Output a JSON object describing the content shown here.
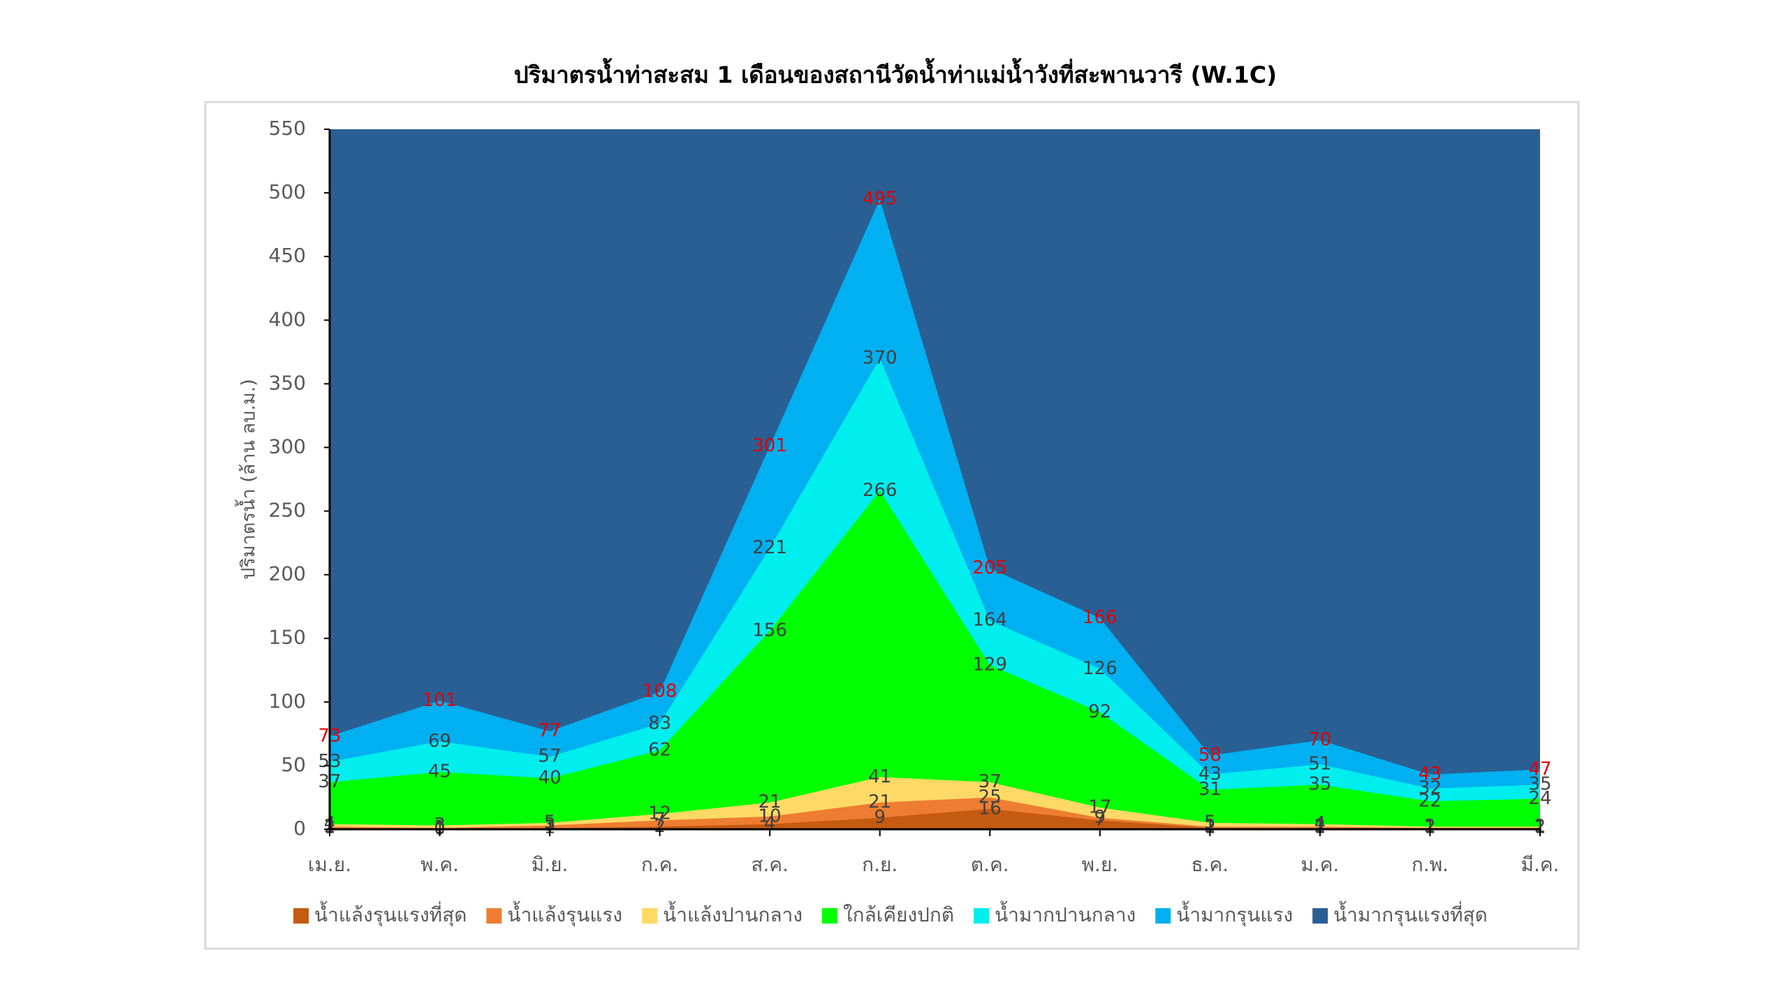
{
  "chart_data": {
    "type": "area",
    "title": "ปริมาตรน้ำท่าสะสม 1 เดือนของสถานีวัดน้ำท่าแม่น้ำวังที่สะพานวารี (W.1C)",
    "y_label": "ปริมาตรน้ำ (ล้าน ลบ.ม.)",
    "categories": [
      "เม.ย.",
      "พ.ค.",
      "มิ.ย.",
      "ก.ค.",
      "ส.ค.",
      "ก.ย.",
      "ต.ค.",
      "พ.ย.",
      "ธ.ค.",
      "ม.ค.",
      "ก.พ.",
      "มี.ค."
    ],
    "ylim": [
      0,
      550
    ],
    "yticks": [
      0,
      50,
      100,
      150,
      200,
      250,
      300,
      350,
      400,
      450,
      500,
      550
    ],
    "legend": "bottom",
    "series": [
      {
        "name": "น้ำแล้งรุนแรงที่สุด",
        "color": "#c55a11",
        "label_color": "#404040",
        "values": [
          1,
          0,
          1,
          2,
          4,
          9,
          16,
          7,
          1,
          1,
          1,
          1
        ]
      },
      {
        "name": "น้ำแล้งรุนแรง",
        "color": "#ed7d31",
        "label_color": "#404040",
        "values": [
          2,
          1,
          3,
          7,
          10,
          21,
          25,
          9,
          2,
          2,
          1,
          1
        ]
      },
      {
        "name": "น้ำแล้งปานกลาง",
        "color": "#ffd966",
        "label_color": "#404040",
        "values": [
          4,
          3,
          5,
          12,
          21,
          41,
          37,
          17,
          5,
          4,
          2,
          2
        ]
      },
      {
        "name": "ใกล้เคียงปกติ",
        "color": "#00ff00",
        "label_color": "#404040",
        "values": [
          37,
          45,
          40,
          62,
          156,
          266,
          129,
          92,
          31,
          35,
          22,
          24
        ]
      },
      {
        "name": "น้ำมากปานกลาง",
        "color": "#00eeee",
        "label_color": "#404040",
        "values": [
          53,
          69,
          57,
          83,
          221,
          370,
          164,
          126,
          43,
          51,
          32,
          35
        ]
      },
      {
        "name": "น้ำมากรุนแรง",
        "color": "#00b0f0",
        "label_color": "#e00000",
        "values": [
          73,
          101,
          77,
          108,
          301,
          495,
          205,
          166,
          58,
          70,
          43,
          47
        ]
      },
      {
        "name": "น้ำมากรุนแรงที่สุด",
        "color": "#2a5f94",
        "data_labels": false,
        "values": [
          550,
          550,
          550,
          550,
          550,
          550,
          550,
          550,
          550,
          550,
          550,
          550
        ]
      }
    ]
  }
}
